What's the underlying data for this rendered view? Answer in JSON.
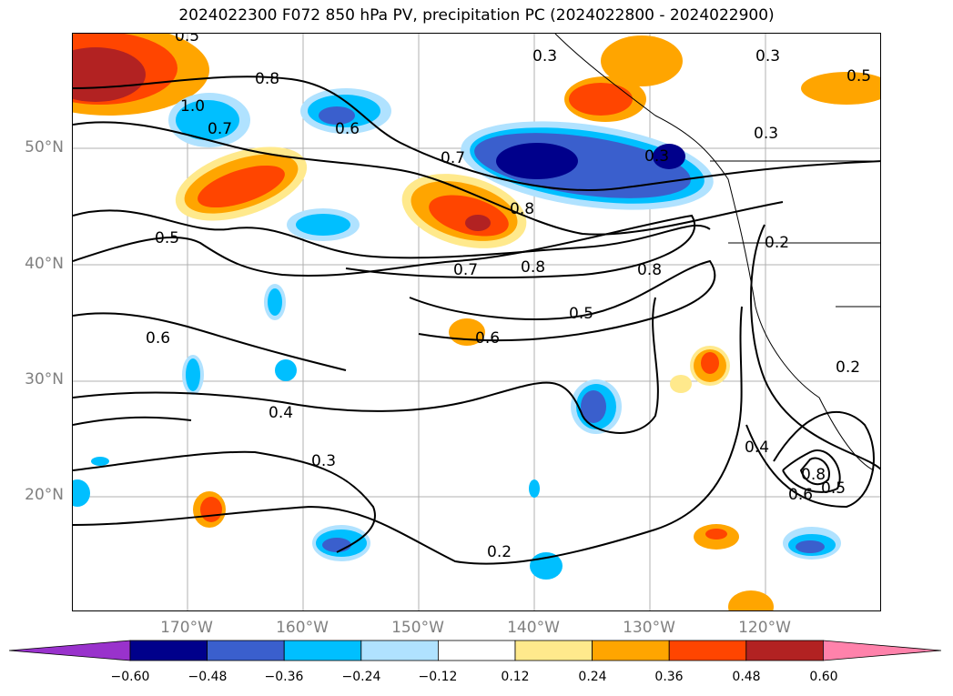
{
  "title": "2024022300 F072 850 hPa PV, precipitation PC (2024022800 - 2024022900)",
  "map": {
    "lat_labels": [
      "50°N",
      "40°N",
      "30°N",
      "20°N"
    ],
    "lon_labels": [
      "170°W",
      "160°W",
      "150°W",
      "140°W",
      "130°W",
      "120°W"
    ],
    "contour_labels": [
      "0.5",
      "0.8",
      "1.0",
      "0.7",
      "0.6",
      "0.3",
      "0.5",
      "0.3",
      "0.7",
      "0.8",
      "0.3",
      "0.5",
      "0.7",
      "0.8",
      "0.8",
      "0.2",
      "0.6",
      "0.5",
      "0.6",
      "0.4",
      "0.3",
      "0.2",
      "0.4",
      "0.8",
      "0.6",
      "0.5",
      "0.2",
      "0.3"
    ]
  },
  "colorbar": {
    "colors": [
      "#9932cc",
      "#00008b",
      "#3a5fcd",
      "#00bfff",
      "#b0e2ff",
      "#ffffff",
      "#ffe98c",
      "#ffa500",
      "#ff4500",
      "#b22222",
      "#ff82ab"
    ],
    "tick_labels": [
      "−0.60",
      "−0.48",
      "−0.36",
      "−0.24",
      "−0.12",
      "0.12",
      "0.24",
      "0.36",
      "0.48",
      "0.60"
    ]
  }
}
